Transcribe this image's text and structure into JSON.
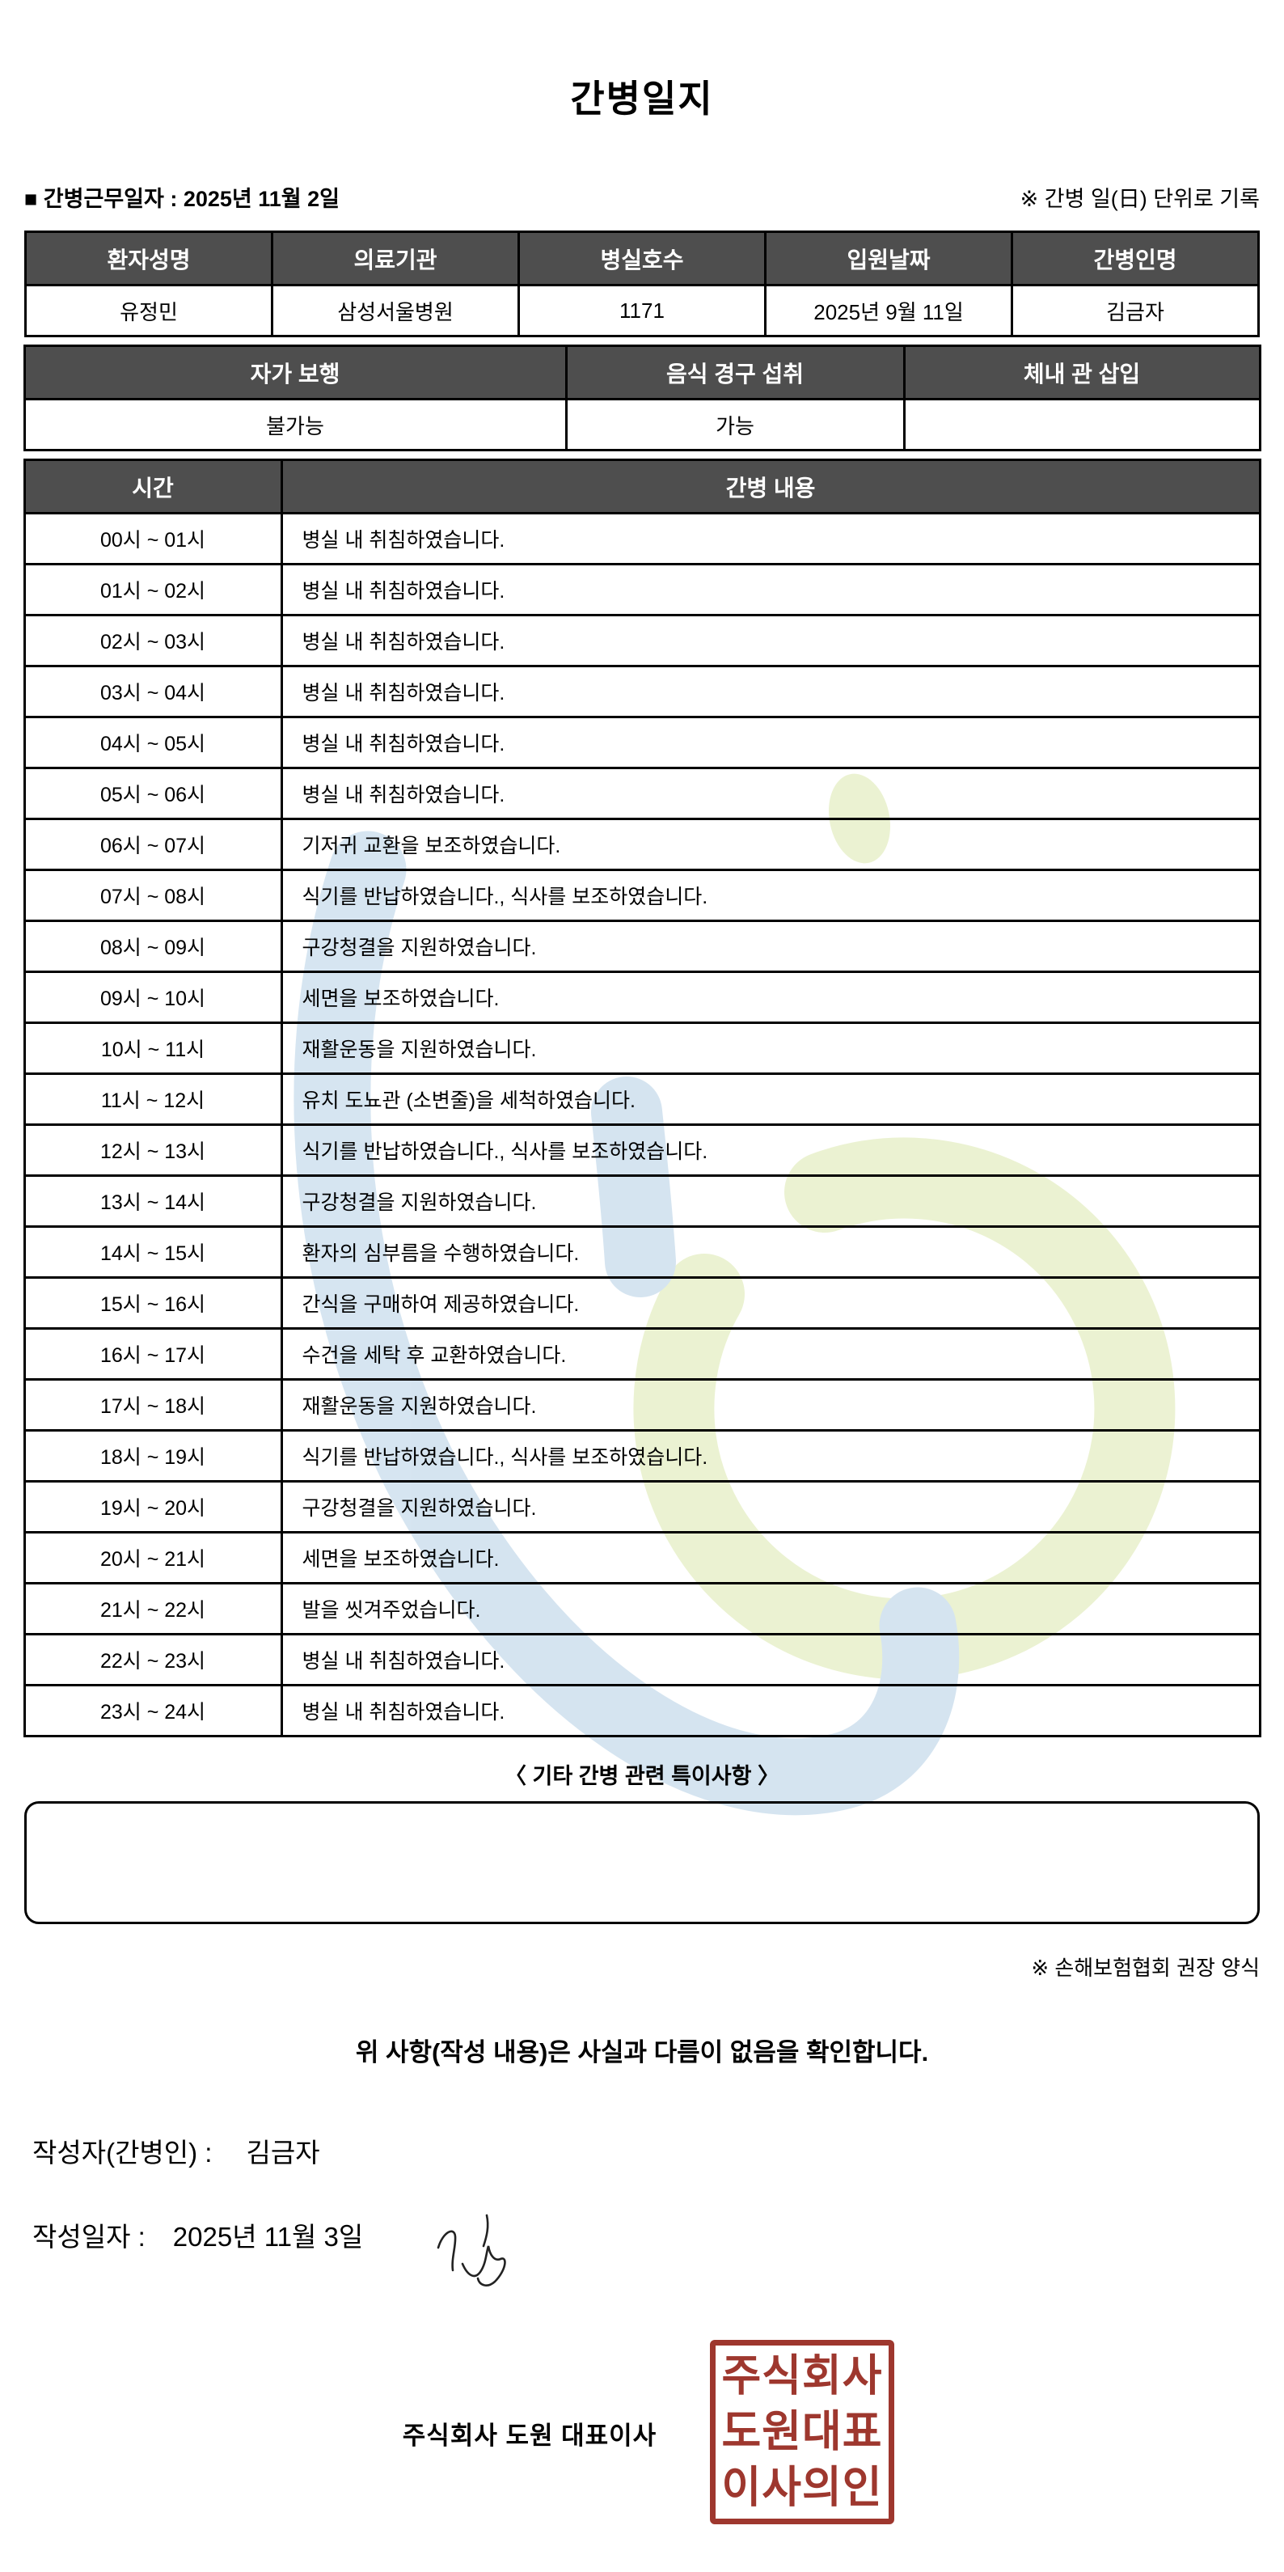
{
  "page": {
    "title": "간병일지",
    "work_date_line": "■ 간병근무일자 :  2025년 11월 2일",
    "unit_note": "※ 간병 일(日) 단위로 기록"
  },
  "patient_table": {
    "headers": [
      "환자성명",
      "의료기관",
      "병실호수",
      "입원날짜",
      "간병인명"
    ],
    "values": [
      "유정민",
      "삼성서울병원",
      "1171",
      "2025년 9월 11일",
      "김금자"
    ]
  },
  "status_table": {
    "headers": [
      "자가 보행",
      "음식 경구 섭취",
      "체내 관 삽입"
    ],
    "values": [
      "불가능",
      "가능",
      ""
    ]
  },
  "log_table": {
    "time_header": "시간",
    "content_header": "간병 내용",
    "rows": [
      {
        "time": "00시 ~ 01시",
        "content": "병실 내 취침하였습니다."
      },
      {
        "time": "01시 ~ 02시",
        "content": "병실 내 취침하였습니다."
      },
      {
        "time": "02시 ~ 03시",
        "content": "병실 내 취침하였습니다."
      },
      {
        "time": "03시 ~ 04시",
        "content": "병실 내 취침하였습니다."
      },
      {
        "time": "04시 ~ 05시",
        "content": "병실 내 취침하였습니다."
      },
      {
        "time": "05시 ~ 06시",
        "content": "병실 내 취침하였습니다."
      },
      {
        "time": "06시 ~ 07시",
        "content": "기저귀 교환을 보조하였습니다."
      },
      {
        "time": "07시 ~ 08시",
        "content": "식기를 반납하였습니다., 식사를 보조하였습니다."
      },
      {
        "time": "08시 ~ 09시",
        "content": "구강청결을 지원하였습니다."
      },
      {
        "time": "09시 ~ 10시",
        "content": "세면을 보조하였습니다."
      },
      {
        "time": "10시 ~ 11시",
        "content": "재활운동을 지원하였습니다."
      },
      {
        "time": "11시 ~ 12시",
        "content": "유치 도뇨관 (소변줄)을 세척하였습니다."
      },
      {
        "time": "12시 ~ 13시",
        "content": "식기를 반납하였습니다., 식사를 보조하였습니다."
      },
      {
        "time": "13시 ~ 14시",
        "content": "구강청결을 지원하였습니다."
      },
      {
        "time": "14시 ~ 15시",
        "content": "환자의 심부름을 수행하였습니다."
      },
      {
        "time": "15시 ~ 16시",
        "content": "간식을 구매하여 제공하였습니다."
      },
      {
        "time": "16시 ~ 17시",
        "content": "수건을 세탁 후 교환하였습니다."
      },
      {
        "time": "17시 ~ 18시",
        "content": "재활운동을 지원하였습니다."
      },
      {
        "time": "18시 ~ 19시",
        "content": "식기를 반납하였습니다., 식사를 보조하였습니다."
      },
      {
        "time": "19시 ~ 20시",
        "content": "구강청결을 지원하였습니다."
      },
      {
        "time": "20시 ~ 21시",
        "content": "세면을 보조하였습니다."
      },
      {
        "time": "21시 ~ 22시",
        "content": "발을 씻겨주었습니다."
      },
      {
        "time": "22시 ~ 23시",
        "content": "병실 내 취침하였습니다."
      },
      {
        "time": "23시 ~ 24시",
        "content": "병실 내 취침하였습니다."
      }
    ]
  },
  "notes": {
    "title": "〈 기타 간병 관련 특이사항 〉",
    "content": ""
  },
  "footer": {
    "form_note": "※ 손해보험협회 권장 양식",
    "confirmation": "위 사항(작성 내용)은 사실과 다름이 없음을 확인합니다.",
    "writer_label": "작성자(간병인) :",
    "writer_name": "김금자",
    "date_label": "작성일자 :",
    "date_value": "2025년 11월 3일",
    "company_line": "주식회사 도원   대표이사",
    "seal_lines": [
      "주식회사",
      "도원대표",
      "이사의인"
    ]
  },
  "colors": {
    "header_bg": "#4e4e4e",
    "seal_red": "#9e372e",
    "watermark_green": "#dce8ae",
    "watermark_blue": "#b4cfe5"
  }
}
